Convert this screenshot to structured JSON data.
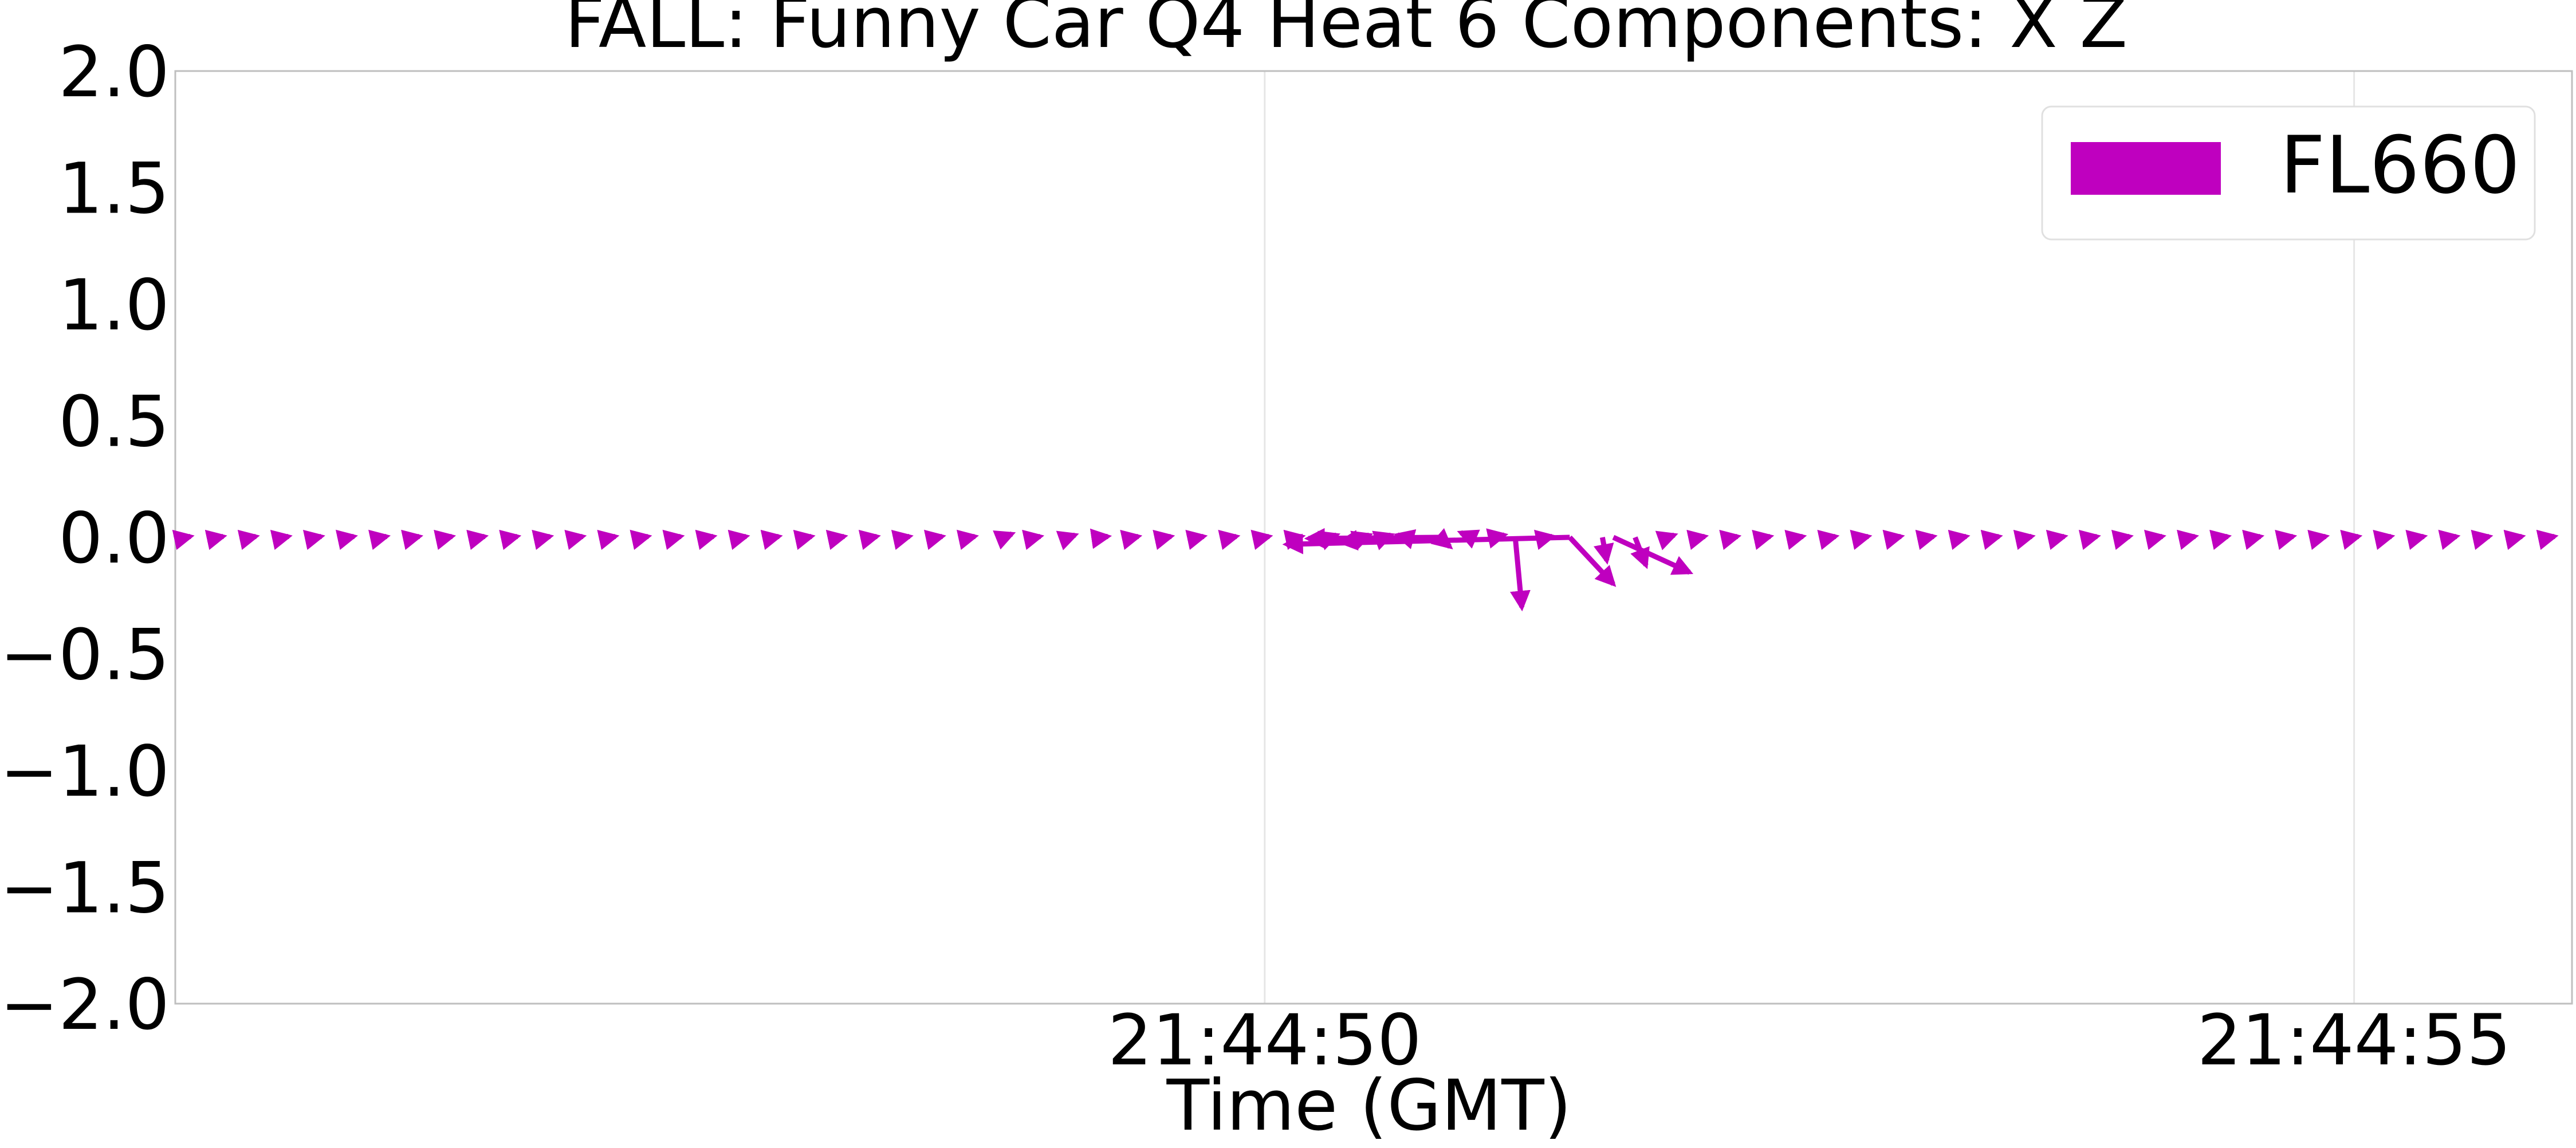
{
  "chart_data": {
    "type": "quiver",
    "title": "FALL: Funny Car Q4 Heat 6 Components: X Z",
    "xlabel": "Time (GMT)",
    "ylabel": "",
    "ylim": [
      -2.0,
      2.0
    ],
    "xlim": [
      "21:44:45",
      "21:44:56"
    ],
    "yticks": [
      "2.0",
      "1.5",
      "1.0",
      "0.5",
      "0.0",
      "−0.5",
      "−1.0",
      "−1.5",
      "−2.0"
    ],
    "ytick_values": [
      2.0,
      1.5,
      1.0,
      0.5,
      0.0,
      -0.5,
      -1.0,
      -1.5,
      -2.0
    ],
    "xticks": [
      {
        "label": "21:44:50",
        "t": 5.0
      },
      {
        "label": "21:44:55",
        "t": 10.0
      }
    ],
    "grid": true,
    "legend_position": "top-right",
    "colors": {
      "series": "#bf00bf",
      "grid": "#e6e6e6",
      "axes": "#bfbfbf"
    },
    "series": [
      {
        "name": "FL660",
        "color": "#bf00bf",
        "vectors": [
          {
            "t": 0.05,
            "u": 0.02,
            "v": 0.004
          },
          {
            "t": 0.2,
            "u": 0.02,
            "v": 0.004
          },
          {
            "t": 0.35,
            "u": 0.02,
            "v": 0.004
          },
          {
            "t": 0.5,
            "u": 0.02,
            "v": 0.004
          },
          {
            "t": 0.65,
            "u": 0.02,
            "v": 0.004
          },
          {
            "t": 0.8,
            "u": 0.02,
            "v": 0.004
          },
          {
            "t": 0.95,
            "u": 0.02,
            "v": 0.004
          },
          {
            "t": 1.1,
            "u": 0.02,
            "v": 0.004
          },
          {
            "t": 1.25,
            "u": 0.02,
            "v": 0.004
          },
          {
            "t": 1.4,
            "u": 0.02,
            "v": 0.004
          },
          {
            "t": 1.55,
            "u": 0.02,
            "v": 0.004
          },
          {
            "t": 1.7,
            "u": 0.02,
            "v": 0.004
          },
          {
            "t": 1.85,
            "u": 0.02,
            "v": 0.004
          },
          {
            "t": 2.0,
            "u": 0.02,
            "v": 0.004
          },
          {
            "t": 2.15,
            "u": 0.02,
            "v": 0.004
          },
          {
            "t": 2.3,
            "u": 0.02,
            "v": 0.004
          },
          {
            "t": 2.45,
            "u": 0.02,
            "v": 0.004
          },
          {
            "t": 2.6,
            "u": 0.02,
            "v": 0.004
          },
          {
            "t": 2.75,
            "u": 0.02,
            "v": 0.004
          },
          {
            "t": 2.9,
            "u": 0.02,
            "v": 0.004
          },
          {
            "t": 3.05,
            "u": 0.02,
            "v": 0.004
          },
          {
            "t": 3.2,
            "u": 0.02,
            "v": 0.004
          },
          {
            "t": 3.35,
            "u": 0.02,
            "v": 0.004
          },
          {
            "t": 3.5,
            "u": 0.02,
            "v": 0.004
          },
          {
            "t": 3.65,
            "u": 0.02,
            "v": 0.004
          },
          {
            "t": 3.8,
            "u": 0.04,
            "v": 0.015
          },
          {
            "t": 3.95,
            "u": 0.02,
            "v": 0.004
          },
          {
            "t": 4.1,
            "u": 0.03,
            "v": 0.01
          },
          {
            "t": 4.25,
            "u": 0.03,
            "v": 0.004
          },
          {
            "t": 4.4,
            "u": 0.02,
            "v": 0.004
          },
          {
            "t": 4.55,
            "u": 0.02,
            "v": 0.004
          },
          {
            "t": 4.7,
            "u": 0.02,
            "v": 0.004
          },
          {
            "t": 4.85,
            "u": 0.02,
            "v": 0.004
          },
          {
            "t": 5.0,
            "u": 0.02,
            "v": 0.004
          },
          {
            "t": 5.15,
            "u": 0.02,
            "v": 0.004
          },
          {
            "t": 5.3,
            "u": 0.03,
            "v": 0.01
          },
          {
            "t": 5.45,
            "u": 0.03,
            "v": 0.01
          },
          {
            "t": 5.55,
            "u": 0.03,
            "v": 0.01
          },
          {
            "t": 5.65,
            "u": -0.04,
            "v": 0.01
          },
          {
            "t": 5.8,
            "u": 0.05,
            "v": -0.04
          },
          {
            "t": 5.95,
            "u": -0.05,
            "v": 0.02
          },
          {
            "t": 6.05,
            "u": 0.05,
            "v": 0.01
          },
          {
            "t": 6.15,
            "u": 0.03,
            "v": -0.3
          },
          {
            "t": 6.3,
            "u": 0.02,
            "v": 0.004
          },
          {
            "t": 6.4,
            "u": 0.2,
            "v": -0.2
          },
          {
            "t": 6.55,
            "u": 0.02,
            "v": -0.1
          },
          {
            "t": 6.7,
            "u": 0.05,
            "v": -0.12
          },
          {
            "t": 6.85,
            "u": 0.03,
            "v": 0.01
          },
          {
            "t": 7.0,
            "u": 0.02,
            "v": 0.004
          },
          {
            "t": 7.15,
            "u": 0.02,
            "v": 0.004
          },
          {
            "t": 7.3,
            "u": 0.02,
            "v": 0.004
          },
          {
            "t": 7.45,
            "u": 0.02,
            "v": 0.004
          },
          {
            "t": 7.6,
            "u": 0.02,
            "v": 0.004
          },
          {
            "t": 7.75,
            "u": 0.02,
            "v": 0.004
          },
          {
            "t": 7.9,
            "u": 0.02,
            "v": 0.004
          },
          {
            "t": 8.05,
            "u": 0.02,
            "v": 0.004
          },
          {
            "t": 8.2,
            "u": 0.02,
            "v": 0.004
          },
          {
            "t": 8.35,
            "u": 0.02,
            "v": 0.004
          },
          {
            "t": 8.5,
            "u": 0.02,
            "v": 0.004
          },
          {
            "t": 8.65,
            "u": 0.02,
            "v": 0.004
          },
          {
            "t": 8.8,
            "u": 0.02,
            "v": 0.004
          },
          {
            "t": 8.95,
            "u": 0.02,
            "v": 0.004
          },
          {
            "t": 9.1,
            "u": 0.02,
            "v": 0.004
          },
          {
            "t": 9.25,
            "u": 0.02,
            "v": 0.004
          },
          {
            "t": 9.4,
            "u": 0.02,
            "v": 0.004
          },
          {
            "t": 9.55,
            "u": 0.02,
            "v": 0.004
          },
          {
            "t": 9.7,
            "u": 0.02,
            "v": 0.004
          },
          {
            "t": 9.85,
            "u": 0.02,
            "v": 0.004
          },
          {
            "t": 10.0,
            "u": 0.02,
            "v": 0.004
          },
          {
            "t": 10.15,
            "u": 0.02,
            "v": 0.004
          },
          {
            "t": 10.3,
            "u": 0.02,
            "v": 0.004
          },
          {
            "t": 10.45,
            "u": 0.02,
            "v": 0.004
          },
          {
            "t": 10.6,
            "u": 0.02,
            "v": 0.004
          },
          {
            "t": 10.75,
            "u": 0.02,
            "v": 0.004
          },
          {
            "t": 10.9,
            "u": 0.02,
            "v": 0.004
          }
        ],
        "long_vectors": [
          {
            "t": 6.4,
            "u": -1.3,
            "v": -0.03
          },
          {
            "t": 5.8,
            "u": -0.6,
            "v": -0.005
          },
          {
            "t": 5.55,
            "u": -0.2,
            "v": -0.02
          },
          {
            "t": 6.6,
            "u": 0.35,
            "v": -0.15
          }
        ]
      }
    ]
  }
}
